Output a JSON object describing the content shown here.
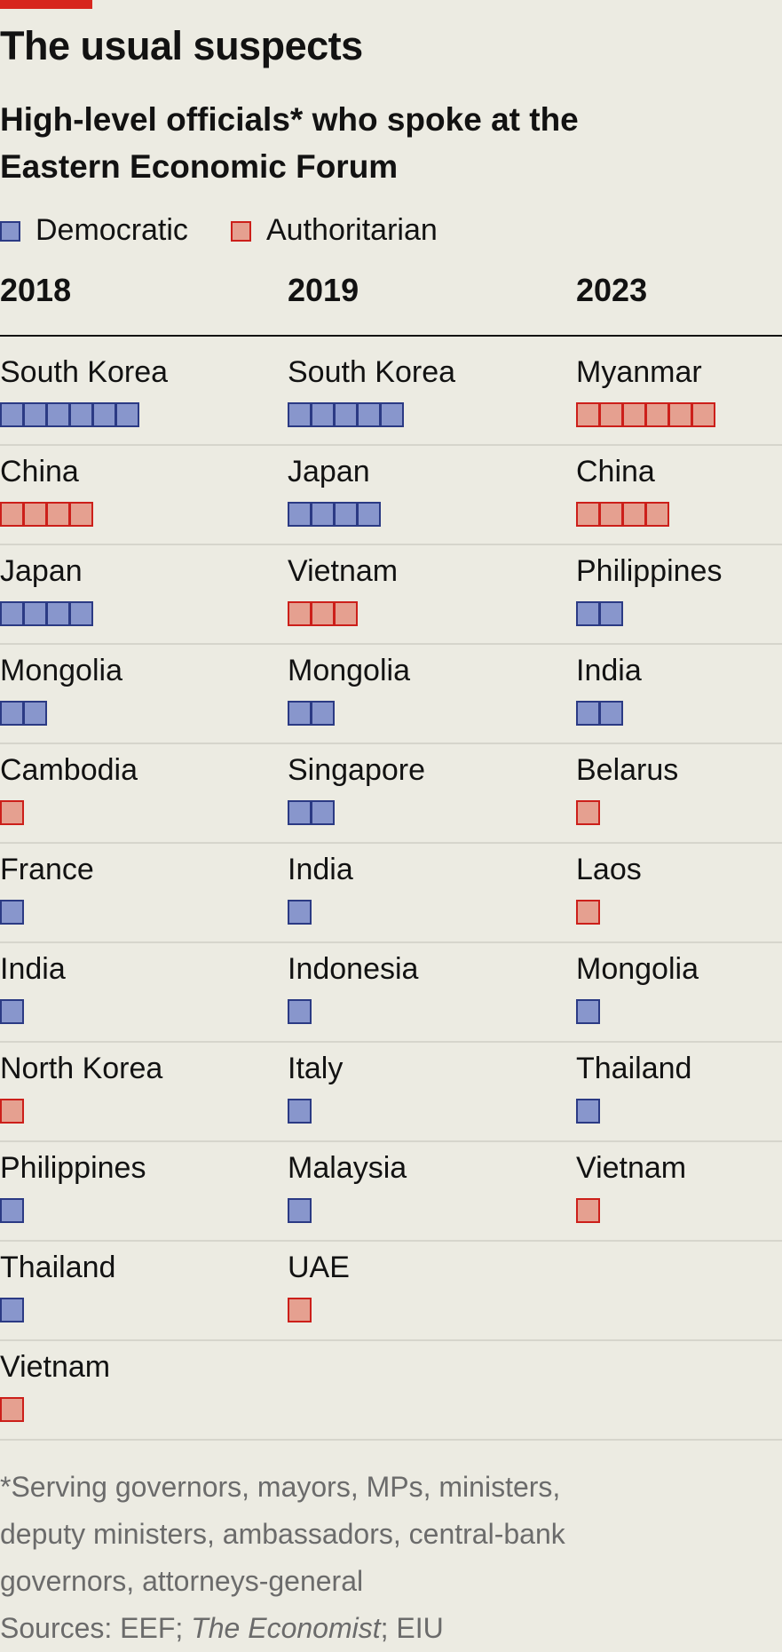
{
  "title": "The usual suspects",
  "subtitle_line1": "High-level officials* who spoke at the",
  "subtitle_line2": "Eastern Economic Forum",
  "legend": [
    {
      "label": "Democratic",
      "key": "democratic"
    },
    {
      "label": "Authoritarian",
      "key": "authoritarian"
    }
  ],
  "colors": {
    "democratic_fill": "#8896cc",
    "democratic_border": "#2b3a84",
    "authoritarian_fill": "#e5a090",
    "authoritarian_border": "#cc1f1a",
    "accent": "#d7261e"
  },
  "footnote": {
    "line1": "*Serving governors, mayors, MPs, ministers,",
    "line2": "deputy ministers, ambassadors, central-bank",
    "line3": "governors, attorneys-general",
    "sources_prefix": "Sources: EEF; ",
    "sources_italic": "The Economist",
    "sources_suffix": "; EIU"
  },
  "chart_data": {
    "type": "table",
    "title": "The usual suspects",
    "subtitle": "High-level officials* who spoke at the Eastern Economic Forum",
    "columns": [
      {
        "year": "2018",
        "rows": [
          {
            "country": "South Korea",
            "count": 6,
            "regime": "democratic"
          },
          {
            "country": "China",
            "count": 4,
            "regime": "authoritarian"
          },
          {
            "country": "Japan",
            "count": 4,
            "regime": "democratic"
          },
          {
            "country": "Mongolia",
            "count": 2,
            "regime": "democratic"
          },
          {
            "country": "Cambodia",
            "count": 1,
            "regime": "authoritarian"
          },
          {
            "country": "France",
            "count": 1,
            "regime": "democratic"
          },
          {
            "country": "India",
            "count": 1,
            "regime": "democratic"
          },
          {
            "country": "North Korea",
            "count": 1,
            "regime": "authoritarian"
          },
          {
            "country": "Philippines",
            "count": 1,
            "regime": "democratic"
          },
          {
            "country": "Thailand",
            "count": 1,
            "regime": "democratic"
          },
          {
            "country": "Vietnam",
            "count": 1,
            "regime": "authoritarian"
          }
        ]
      },
      {
        "year": "2019",
        "rows": [
          {
            "country": "South Korea",
            "count": 5,
            "regime": "democratic"
          },
          {
            "country": "Japan",
            "count": 4,
            "regime": "democratic"
          },
          {
            "country": "Vietnam",
            "count": 3,
            "regime": "authoritarian"
          },
          {
            "country": "Mongolia",
            "count": 2,
            "regime": "democratic"
          },
          {
            "country": "Singapore",
            "count": 2,
            "regime": "democratic"
          },
          {
            "country": "India",
            "count": 1,
            "regime": "democratic"
          },
          {
            "country": "Indonesia",
            "count": 1,
            "regime": "democratic"
          },
          {
            "country": "Italy",
            "count": 1,
            "regime": "democratic"
          },
          {
            "country": "Malaysia",
            "count": 1,
            "regime": "democratic"
          },
          {
            "country": "UAE",
            "count": 1,
            "regime": "authoritarian"
          }
        ]
      },
      {
        "year": "2023",
        "rows": [
          {
            "country": "Myanmar",
            "count": 6,
            "regime": "authoritarian"
          },
          {
            "country": "China",
            "count": 4,
            "regime": "authoritarian"
          },
          {
            "country": "Philippines",
            "count": 2,
            "regime": "democratic"
          },
          {
            "country": "India",
            "count": 2,
            "regime": "democratic"
          },
          {
            "country": "Belarus",
            "count": 1,
            "regime": "authoritarian"
          },
          {
            "country": "Laos",
            "count": 1,
            "regime": "authoritarian"
          },
          {
            "country": "Mongolia",
            "count": 1,
            "regime": "democratic"
          },
          {
            "country": "Thailand",
            "count": 1,
            "regime": "democratic"
          },
          {
            "country": "Vietnam",
            "count": 1,
            "regime": "authoritarian"
          }
        ]
      }
    ]
  }
}
